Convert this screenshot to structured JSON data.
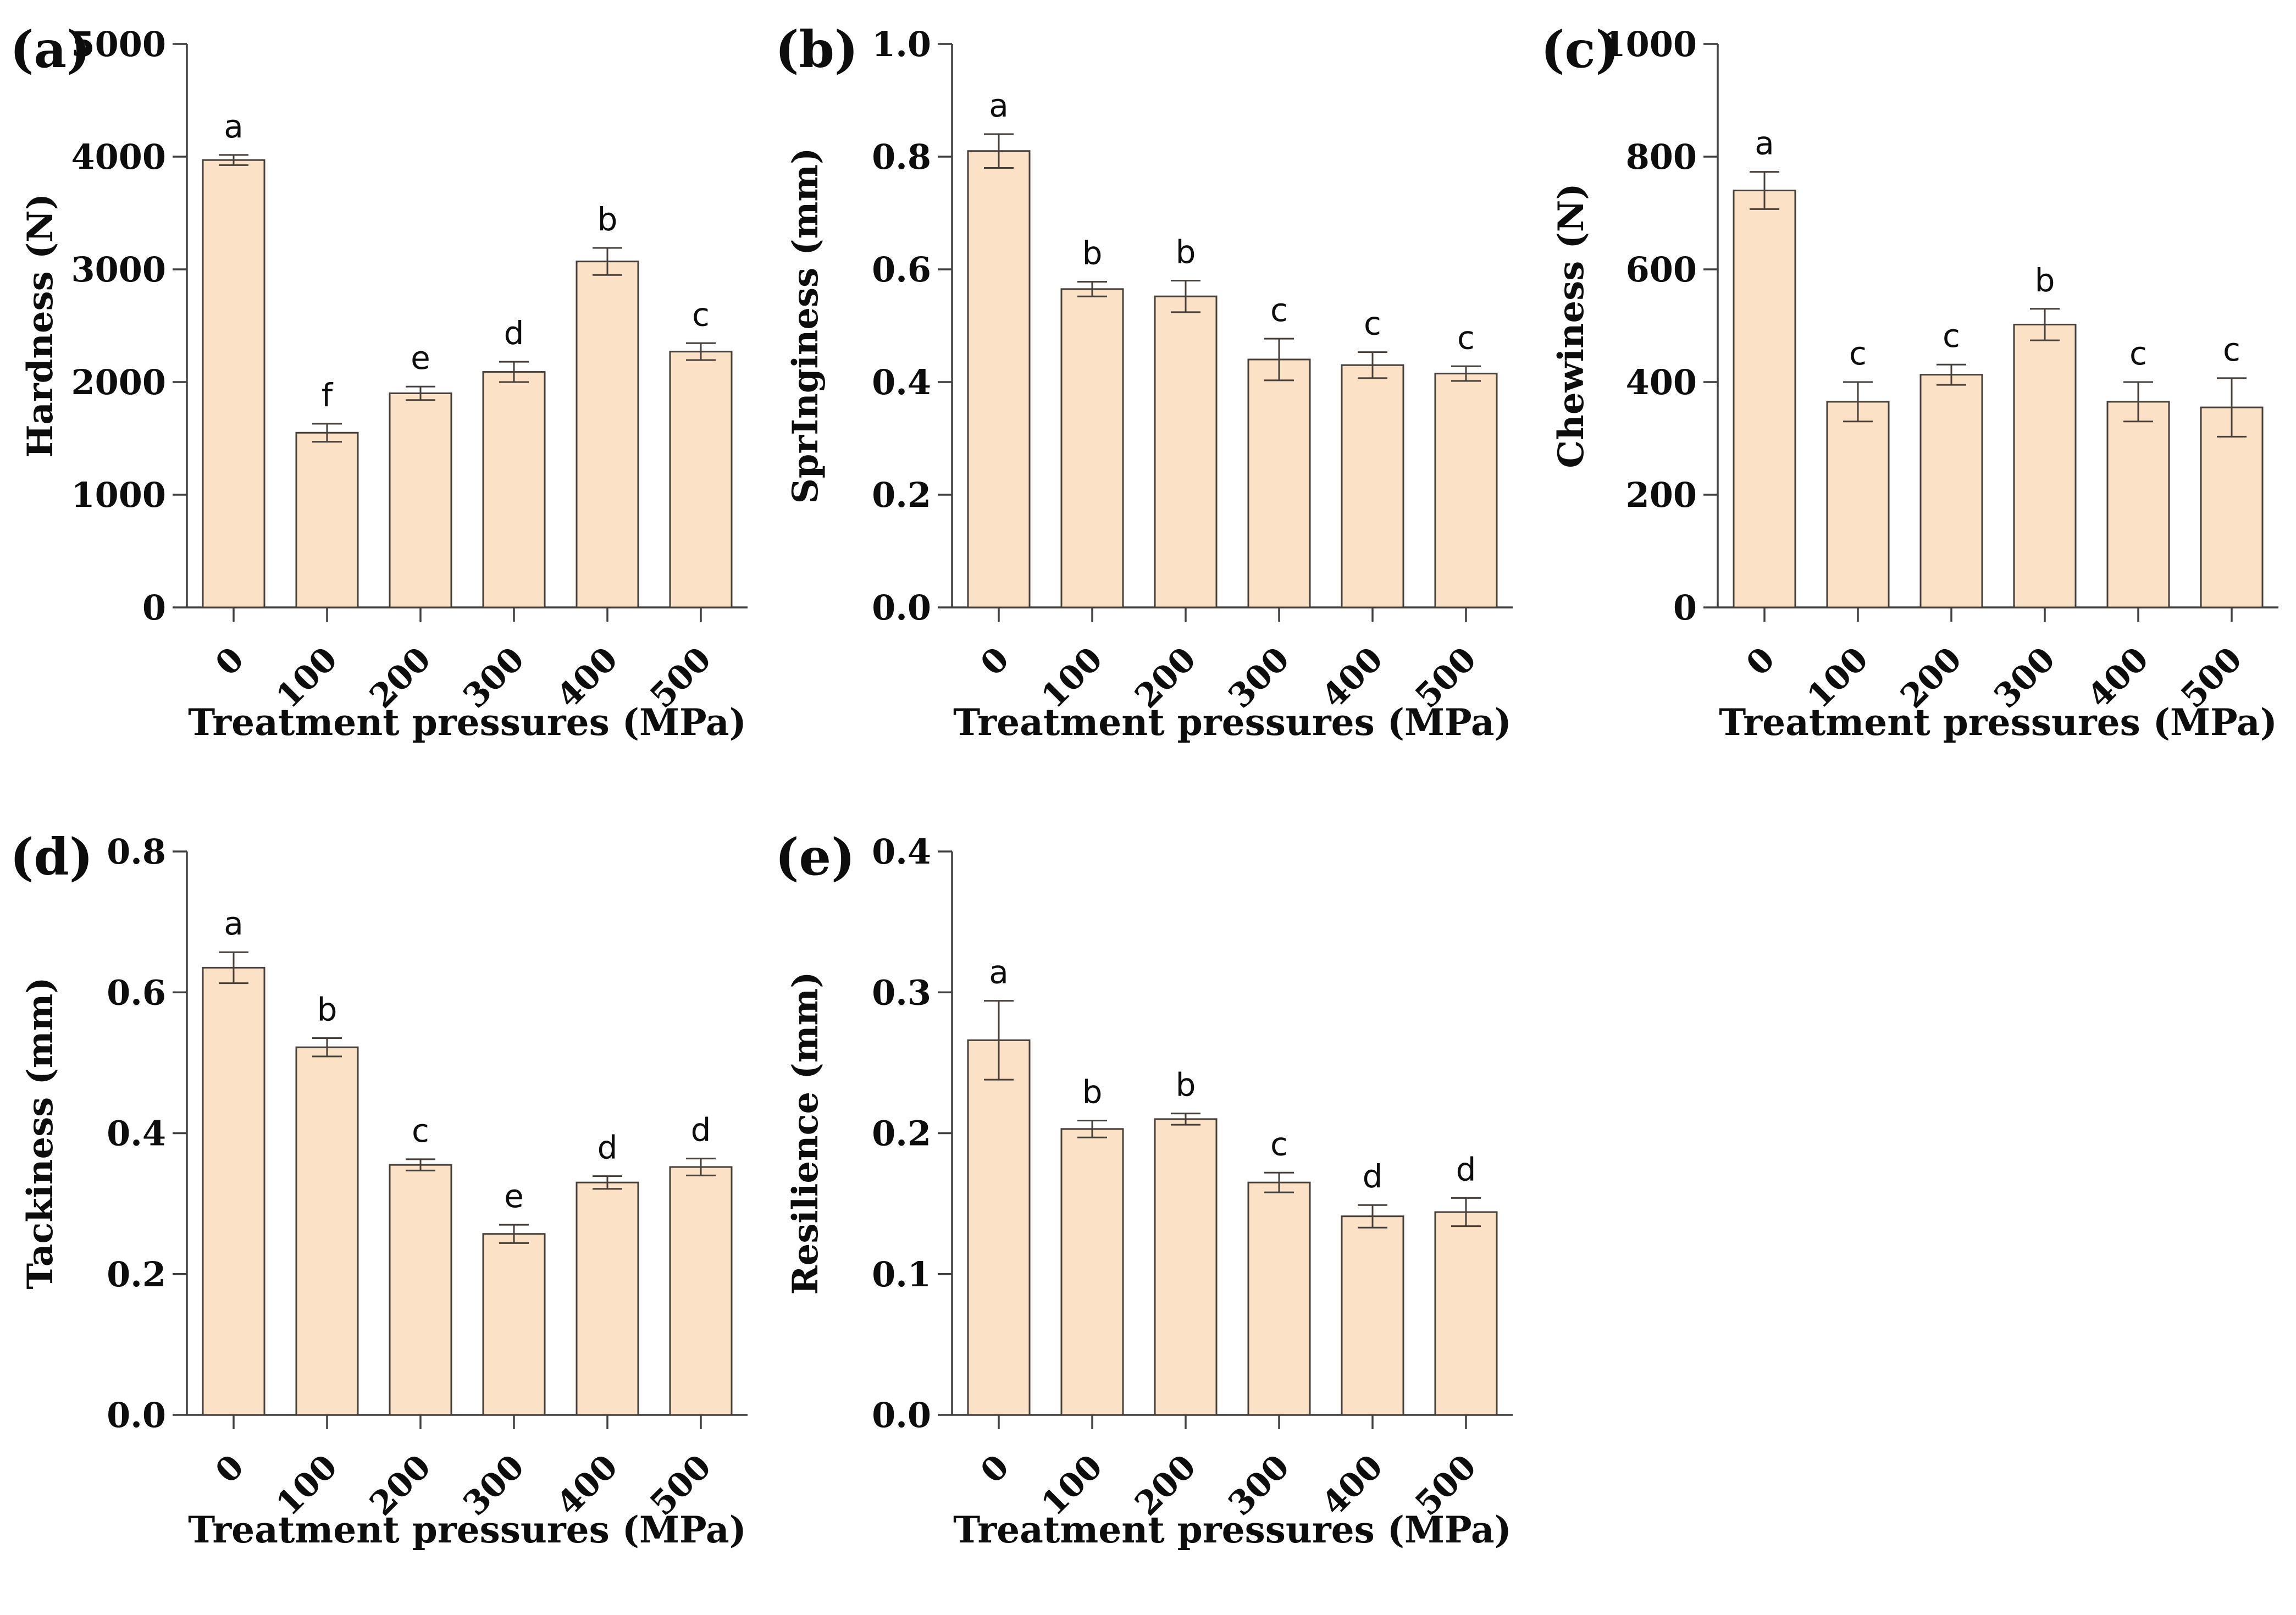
{
  "figure": {
    "background": "#ffffff",
    "bar_fill": "#fbe2c6",
    "bar_stroke": "#473f39",
    "error_color": "#473f39",
    "axis_color": "#404040",
    "text_color": "#0d0d0d",
    "xlabel": "Treatment pressures (MPa)",
    "categories": [
      "0",
      "100",
      "200",
      "300",
      "400",
      "500"
    ]
  },
  "chart_data": [
    {
      "type": "bar",
      "panel_label": "(a)",
      "title": "",
      "ylabel": "Hardness (N)",
      "xlabel": "Treatment pressures (MPa)",
      "categories": [
        "0",
        "100",
        "200",
        "300",
        "400",
        "500"
      ],
      "values": [
        3970,
        1550,
        1900,
        2090,
        3070,
        2270
      ],
      "errors": [
        45,
        80,
        60,
        90,
        120,
        75
      ],
      "letters": [
        "a",
        "f",
        "e",
        "d",
        "b",
        "c"
      ],
      "ylim": [
        0,
        5000
      ],
      "ytick_labels": [
        "0",
        "1000",
        "2000",
        "3000",
        "4000",
        "5000"
      ],
      "grid": false,
      "legend": "none"
    },
    {
      "type": "bar",
      "panel_label": "(b)",
      "title": "",
      "ylabel": "SprInginess (mm)",
      "xlabel": "Treatment pressures (MPa)",
      "categories": [
        "0",
        "100",
        "200",
        "300",
        "400",
        "500"
      ],
      "values": [
        0.81,
        0.565,
        0.552,
        0.44,
        0.43,
        0.415
      ],
      "errors": [
        0.03,
        0.013,
        0.028,
        0.037,
        0.023,
        0.013
      ],
      "letters": [
        "a",
        "b",
        "b",
        "c",
        "c",
        "c"
      ],
      "ylim": [
        0,
        1.0
      ],
      "ytick_labels": [
        "0.0",
        "0.2",
        "0.4",
        "0.6",
        "0.8",
        "1.0"
      ],
      "grid": false,
      "legend": "none"
    },
    {
      "type": "bar",
      "panel_label": "(c)",
      "title": "",
      "ylabel": "Chewiness (N)",
      "xlabel": "Treatment pressures (MPa)",
      "categories": [
        "0",
        "100",
        "200",
        "300",
        "400",
        "500"
      ],
      "values": [
        740,
        365,
        413,
        502,
        365,
        355
      ],
      "errors": [
        33,
        35,
        18,
        28,
        35,
        52
      ],
      "letters": [
        "a",
        "c",
        "c",
        "b",
        "c",
        "c"
      ],
      "ylim": [
        0,
        1000
      ],
      "ytick_labels": [
        "0",
        "200",
        "400",
        "600",
        "800",
        "1000"
      ],
      "grid": false,
      "legend": "none"
    },
    {
      "type": "bar",
      "panel_label": "(d)",
      "title": "",
      "ylabel": "Tackiness (mm)",
      "xlabel": "Treatment pressures (MPa)",
      "categories": [
        "0",
        "100",
        "200",
        "300",
        "400",
        "500"
      ],
      "values": [
        0.635,
        0.522,
        0.355,
        0.257,
        0.33,
        0.352
      ],
      "errors": [
        0.022,
        0.013,
        0.008,
        0.013,
        0.009,
        0.012
      ],
      "letters": [
        "a",
        "b",
        "c",
        "e",
        "d",
        "d"
      ],
      "ylim": [
        0,
        0.8
      ],
      "ytick_labels": [
        "0.0",
        "0.2",
        "0.4",
        "0.6",
        "0.8"
      ],
      "grid": false,
      "legend": "none"
    },
    {
      "type": "bar",
      "panel_label": "(e)",
      "title": "",
      "ylabel": "Resilience (mm)",
      "xlabel": "Treatment pressures (MPa)",
      "categories": [
        "0",
        "100",
        "200",
        "300",
        "400",
        "500"
      ],
      "values": [
        0.266,
        0.203,
        0.21,
        0.165,
        0.141,
        0.144
      ],
      "errors": [
        0.028,
        0.006,
        0.004,
        0.007,
        0.008,
        0.01
      ],
      "letters": [
        "a",
        "b",
        "b",
        "c",
        "d",
        "d"
      ],
      "ylim": [
        0,
        0.4
      ],
      "ytick_labels": [
        "0.0",
        "0.1",
        "0.2",
        "0.3",
        "0.4"
      ],
      "grid": false,
      "legend": "none"
    }
  ]
}
